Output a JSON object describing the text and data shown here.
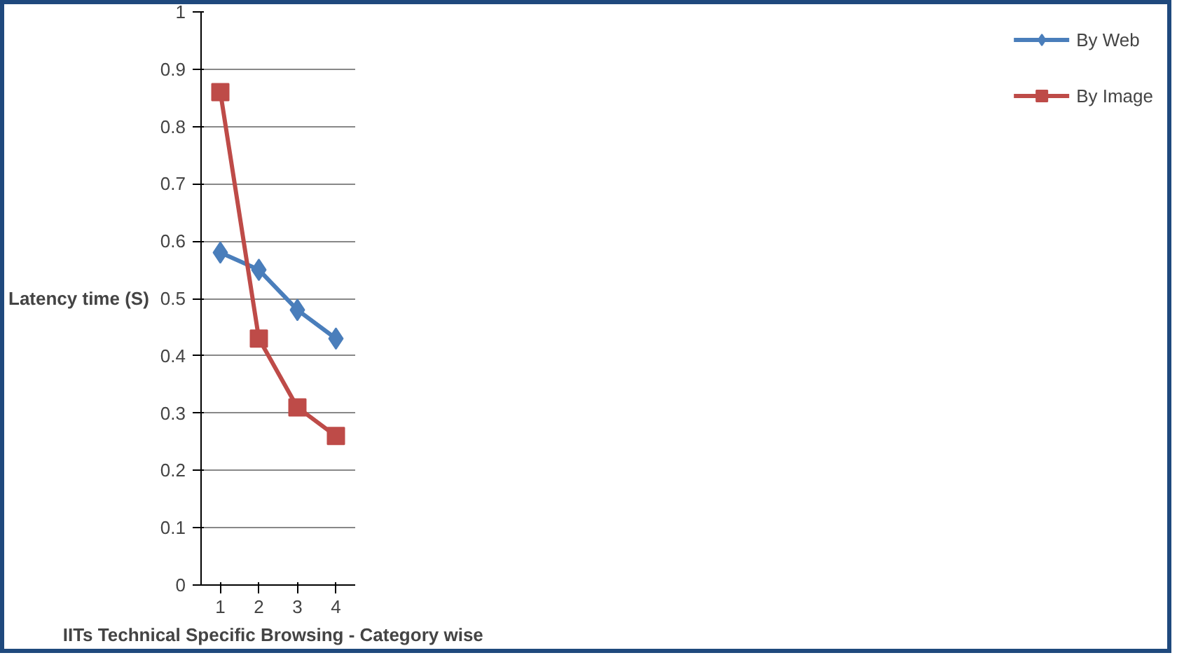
{
  "chart_data": {
    "type": "line",
    "xlabel": "IITs Technical  Specific Browsing  - Category wise",
    "ylabel": "Latency time (S)",
    "categories": [
      "1",
      "2",
      "3",
      "4"
    ],
    "series": [
      {
        "name": "By Web",
        "color": "#4a7ebb",
        "values": [
          0.58,
          0.55,
          0.48,
          0.43
        ],
        "marker": "diamond"
      },
      {
        "name": "By Image",
        "color": "#be4b48",
        "values": [
          0.86,
          0.43,
          0.31,
          0.26
        ],
        "marker": "square"
      }
    ],
    "ylim": [
      0,
      1
    ],
    "yticks": [
      0,
      0.1,
      0.2,
      0.3,
      0.4,
      0.5,
      0.6,
      0.7,
      0.8,
      0.9,
      1
    ],
    "grid": "y",
    "legend": "right",
    "line_style": "solid"
  }
}
